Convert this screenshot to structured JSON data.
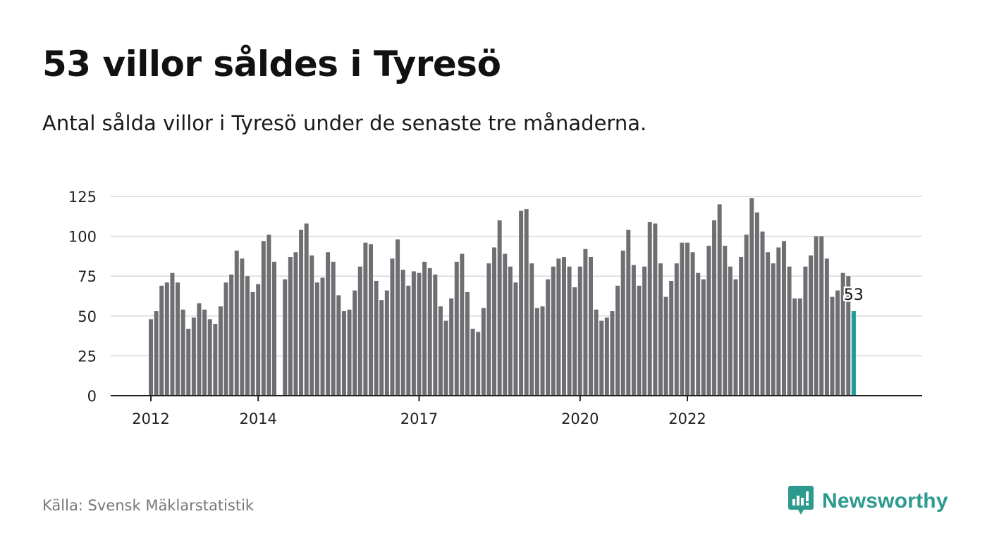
{
  "title": "53 villor såldes i Tyresö",
  "subtitle": "Antal sålda villor i Tyresö under de senaste tre månaderna.",
  "source": "Källa: Svensk Mäklarstatistik",
  "brand": {
    "name": "Newsworthy",
    "color": "#2d9a8f",
    "icon": "bar-chart-speech-bubble-icon"
  },
  "colors": {
    "bar": "#6f6f73",
    "highlight": "#1a9e96",
    "grid": "#d9d9d9",
    "axis": "#222222"
  },
  "chart_data": {
    "type": "bar",
    "title": "",
    "xlabel": "",
    "ylabel": "",
    "ylim": [
      0,
      125
    ],
    "yticks": [
      0,
      25,
      50,
      75,
      100,
      125
    ],
    "grid": true,
    "xticks": [
      {
        "label": "2012",
        "index": 0
      },
      {
        "label": "2014",
        "index": 20
      },
      {
        "label": "2017",
        "index": 50
      },
      {
        "label": "2020",
        "index": 80
      },
      {
        "label": "2022",
        "index": 100
      }
    ],
    "values": [
      48,
      53,
      69,
      71,
      77,
      71,
      54,
      42,
      49,
      58,
      54,
      48,
      45,
      56,
      71,
      76,
      91,
      86,
      75,
      65,
      70,
      97,
      101,
      84,
      0,
      73,
      87,
      90,
      104,
      108,
      88,
      71,
      74,
      90,
      84,
      63,
      53,
      54,
      66,
      81,
      96,
      95,
      72,
      60,
      66,
      86,
      98,
      79,
      69,
      78,
      77,
      84,
      80,
      76,
      56,
      47,
      61,
      84,
      89,
      65,
      42,
      40,
      55,
      83,
      93,
      110,
      89,
      81,
      71,
      116,
      117,
      83,
      55,
      56,
      73,
      81,
      86,
      87,
      81,
      68,
      81,
      92,
      87,
      54,
      47,
      49,
      53,
      69,
      91,
      104,
      82,
      69,
      81,
      109,
      108,
      83,
      62,
      72,
      83,
      96,
      96,
      90,
      77,
      73,
      94,
      110,
      120,
      94,
      81,
      73,
      87,
      101,
      124,
      115,
      103,
      90,
      83,
      93,
      97,
      81,
      61,
      61,
      81,
      88,
      100,
      100,
      86,
      62,
      66,
      77,
      75,
      53
    ],
    "highlight_last": true,
    "last_label": "53"
  }
}
